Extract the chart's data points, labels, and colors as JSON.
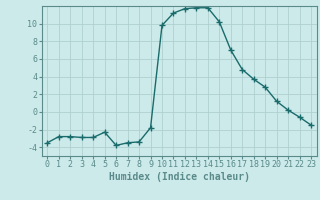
{
  "x": [
    0,
    1,
    2,
    3,
    4,
    5,
    6,
    7,
    8,
    9,
    10,
    11,
    12,
    13,
    14,
    15,
    16,
    17,
    18,
    19,
    20,
    21,
    22,
    23
  ],
  "y": [
    -3.5,
    -2.8,
    -2.8,
    -2.9,
    -2.9,
    -2.3,
    -3.8,
    -3.5,
    -3.4,
    -1.8,
    9.8,
    11.2,
    11.7,
    11.8,
    11.8,
    10.2,
    7.0,
    4.8,
    3.7,
    2.8,
    1.2,
    0.2,
    -0.6,
    -1.5
  ],
  "line_color": "#1a6b6b",
  "marker": "+",
  "marker_size": 4,
  "bg_color": "#cceaea",
  "grid_color": "#b0d0d0",
  "xlabel": "Humidex (Indice chaleur)",
  "xlim": [
    -0.5,
    23.5
  ],
  "ylim": [
    -5,
    12
  ],
  "yticks": [
    -4,
    -2,
    0,
    2,
    4,
    6,
    8,
    10
  ],
  "xticks": [
    0,
    1,
    2,
    3,
    4,
    5,
    6,
    7,
    8,
    9,
    10,
    11,
    12,
    13,
    14,
    15,
    16,
    17,
    18,
    19,
    20,
    21,
    22,
    23
  ],
  "xlabel_fontsize": 7,
  "tick_fontsize": 6,
  "line_width": 1.0,
  "spine_color": "#5a8a8a"
}
